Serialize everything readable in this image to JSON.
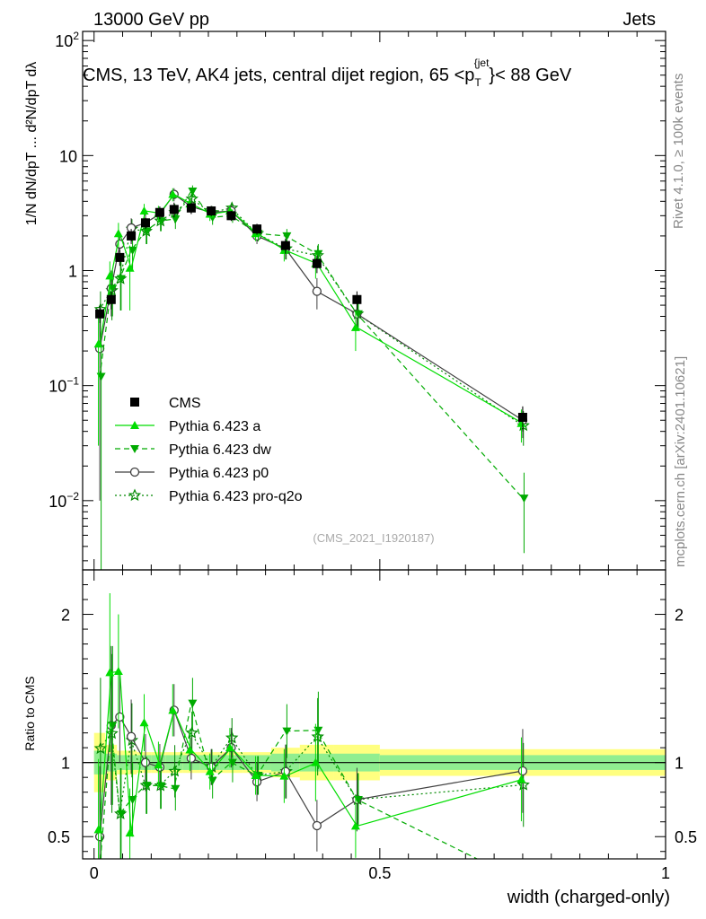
{
  "header": {
    "energy_label": "13000 GeV pp",
    "category_label": "Jets"
  },
  "side_labels": {
    "rivet": "Rivet 4.1.0, ≥ 100k events",
    "mcplots": "mcplots.cern.ch [arXiv:2401.10621]"
  },
  "analysis_id": "(CMS_2021_I1920187)",
  "chart_data": {
    "type": "scatter",
    "title": "CMS, 13 TeV, AK4 jets, central dijet region, 65 <p_T^{jet}< 88 GeV",
    "title_parts": {
      "pre": "CMS, 13 TeV, AK4 jets, central dijet region, 65 <p",
      "sub": "T",
      "sup": "{jet",
      "post": "}< 88 GeV"
    },
    "xlabel": "width (charged-only)",
    "ylabel_main": "1/N dN/dpT ... d²N/dpT dλ",
    "ylabel_ratio": "Ratio to CMS",
    "xlim": [
      -0.02,
      1.0
    ],
    "ylim_main": [
      0.0025,
      120
    ],
    "ylim_ratio": [
      0.35,
      2.3
    ],
    "main_ticks": {
      "x": [
        0,
        0.5,
        1
      ],
      "x_labels": [
        "0",
        "0.5",
        "1"
      ],
      "y_major_exp": [
        -2,
        -1,
        0,
        1,
        2
      ],
      "y_labels": [
        {
          "base": "10",
          "exp": "−2"
        },
        {
          "base": "10",
          "exp": "−1"
        },
        {
          "base": "1",
          "exp": ""
        },
        {
          "base": "10",
          "exp": ""
        },
        {
          "base": "10",
          "exp": "2"
        }
      ]
    },
    "ratio_ticks": {
      "y": [
        0.5,
        1,
        2
      ],
      "y_labels": [
        "0.5",
        "1",
        "2"
      ]
    },
    "x": [
      0.01,
      0.03,
      0.045,
      0.065,
      0.09,
      0.115,
      0.14,
      0.17,
      0.205,
      0.24,
      0.285,
      0.335,
      0.39,
      0.46,
      0.75
    ],
    "series": [
      {
        "name": "CMS",
        "color": "#000000",
        "marker": "square",
        "line": "none",
        "values": [
          0.42,
          0.56,
          1.3,
          2.0,
          2.6,
          3.2,
          3.4,
          3.5,
          3.3,
          3.0,
          2.3,
          1.65,
          1.15,
          0.56,
          0.053
        ],
        "err": [
          0.07,
          0.1,
          0.2,
          0.3,
          0.3,
          0.4,
          0.5,
          0.4,
          0.35,
          0.3,
          0.25,
          0.25,
          0.2,
          0.1,
          0.013
        ]
      },
      {
        "name": "Pythia 6.423 a",
        "color": "#00dd00",
        "marker": "triangle-up",
        "line": "solid",
        "values": [
          0.23,
          0.9,
          2.1,
          1.05,
          3.3,
          3.15,
          4.6,
          3.8,
          3.1,
          3.3,
          2.1,
          1.5,
          1.15,
          0.32,
          0.047
        ],
        "err": [
          0.2,
          0.3,
          0.5,
          0.6,
          0.5,
          0.5,
          0.6,
          0.5,
          0.4,
          0.4,
          0.3,
          0.3,
          0.3,
          0.12,
          0.015
        ]
      },
      {
        "name": "Pythia 6.423 dw",
        "color": "#00aa00",
        "marker": "triangle-down",
        "line": "dashed",
        "values": [
          0.12,
          0.7,
          0.85,
          1.5,
          2.2,
          2.7,
          2.8,
          4.9,
          2.9,
          3.0,
          2.1,
          2.0,
          1.4,
          0.42,
          0.0105
        ],
        "err": [
          0.12,
          0.3,
          0.4,
          0.5,
          0.5,
          0.5,
          0.5,
          0.6,
          0.4,
          0.4,
          0.3,
          0.3,
          0.3,
          0.1,
          0.007
        ]
      },
      {
        "name": "Pythia 6.423 p0",
        "color": "#404040",
        "marker": "circle-open",
        "line": "solid",
        "values": [
          0.21,
          0.7,
          1.7,
          2.35,
          2.6,
          3.1,
          4.6,
          3.6,
          3.2,
          3.3,
          2.0,
          1.55,
          0.66,
          0.42,
          0.05
        ],
        "err": [
          0.2,
          0.3,
          0.4,
          0.5,
          0.5,
          0.5,
          0.6,
          0.5,
          0.4,
          0.4,
          0.3,
          0.3,
          0.2,
          0.12,
          0.015
        ]
      },
      {
        "name": "Pythia 6.423 pro-q2o",
        "color": "#008800",
        "marker": "star",
        "line": "dotted",
        "values": [
          0.46,
          0.67,
          0.85,
          2.3,
          2.2,
          2.7,
          3.2,
          4.2,
          3.2,
          3.5,
          2.1,
          1.55,
          1.35,
          0.42,
          0.045
        ],
        "err": [
          0.2,
          0.3,
          0.4,
          0.5,
          0.5,
          0.5,
          0.6,
          0.5,
          0.4,
          0.4,
          0.3,
          0.3,
          0.3,
          0.1,
          0.015
        ]
      }
    ],
    "ratio_bands": {
      "bins": [
        [
          0,
          0.02
        ],
        [
          0.02,
          0.04
        ],
        [
          0.04,
          0.055
        ],
        [
          0.055,
          0.075
        ],
        [
          0.075,
          0.1
        ],
        [
          0.1,
          0.125
        ],
        [
          0.125,
          0.155
        ],
        [
          0.155,
          0.185
        ],
        [
          0.185,
          0.22
        ],
        [
          0.22,
          0.26
        ],
        [
          0.26,
          0.31
        ],
        [
          0.31,
          0.36
        ],
        [
          0.36,
          0.42
        ],
        [
          0.42,
          0.5
        ],
        [
          0.5,
          1.0
        ]
      ],
      "inner": [
        0.08,
        0.06,
        0.05,
        0.05,
        0.05,
        0.05,
        0.05,
        0.05,
        0.05,
        0.05,
        0.05,
        0.06,
        0.06,
        0.06,
        0.05
      ],
      "outer": [
        0.2,
        0.12,
        0.08,
        0.08,
        0.07,
        0.07,
        0.07,
        0.07,
        0.07,
        0.07,
        0.07,
        0.1,
        0.12,
        0.12,
        0.09
      ],
      "inner_color": "#90ee90",
      "outer_color": "#ffff80"
    },
    "legend_position": "lower-left"
  }
}
